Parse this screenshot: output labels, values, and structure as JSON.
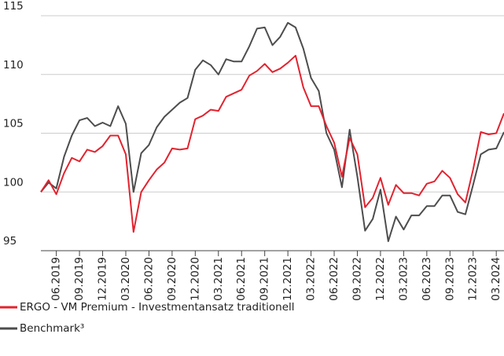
{
  "chart_data": {
    "type": "line",
    "categories": [
      null,
      null,
      "06.2019",
      null,
      null,
      "09.2019",
      null,
      null,
      "12.2019",
      null,
      null,
      "03.2020",
      null,
      null,
      "06.2020",
      null,
      null,
      "09.2020",
      null,
      null,
      "12.2020",
      null,
      null,
      "03.2021",
      null,
      null,
      "06.2021",
      null,
      null,
      "09.2021",
      null,
      null,
      "12.2021",
      null,
      null,
      "03.2022",
      null,
      null,
      "06.2022",
      null,
      null,
      "09.2022",
      null,
      null,
      "12.2022",
      null,
      null,
      "03.2023",
      null,
      null,
      "06.2023",
      null,
      null,
      "09.2023",
      null,
      null,
      "12.2023",
      null,
      null,
      "03.2024",
      null
    ],
    "series": [
      {
        "name": "ERGO - VM Premium - Investmentansatz traditionell",
        "color": "#e2232f",
        "values": [
          100,
          101,
          99.8,
          101.6,
          102.9,
          102.6,
          103.6,
          103.4,
          103.9,
          104.8,
          104.8,
          103.2,
          96.6,
          100,
          101,
          101.9,
          102.5,
          103.7,
          103.6,
          103.7,
          106.2,
          106.5,
          107,
          106.9,
          108.1,
          108.4,
          108.7,
          109.9,
          110.3,
          110.9,
          110.2,
          110.5,
          111,
          111.6,
          108.9,
          107.3,
          107.3,
          105.6,
          104.2,
          101.3,
          104.6,
          103.2,
          98.7,
          99.5,
          101.2,
          98.9,
          100.6,
          99.9,
          99.9,
          99.7,
          100.7,
          100.9,
          101.8,
          101.2,
          99.8,
          99.1,
          101.9,
          105.1,
          104.9,
          105,
          106.7
        ]
      },
      {
        "name": "Benchmark³",
        "color": "#4d4d4d",
        "values": [
          100,
          100.8,
          100.3,
          103,
          104.8,
          106.1,
          106.3,
          105.6,
          105.9,
          105.6,
          107.3,
          105.8,
          100,
          103.3,
          104,
          105.5,
          106.4,
          107,
          107.6,
          108,
          110.4,
          111.2,
          110.8,
          110,
          111.3,
          111.1,
          111.1,
          112.4,
          113.9,
          114,
          112.5,
          113.2,
          114.4,
          114,
          112.2,
          109.7,
          108.6,
          105,
          103.6,
          100.4,
          105.3,
          101.3,
          96.7,
          97.7,
          100.2,
          95.8,
          97.9,
          96.8,
          98,
          98,
          98.8,
          98.8,
          99.7,
          99.7,
          98.3,
          98.1,
          100.6,
          103.2,
          103.6,
          103.7,
          105.1
        ]
      }
    ],
    "ylim": [
      95,
      115
    ],
    "yticks": [
      95,
      100,
      105,
      110,
      115
    ],
    "grid": true
  }
}
